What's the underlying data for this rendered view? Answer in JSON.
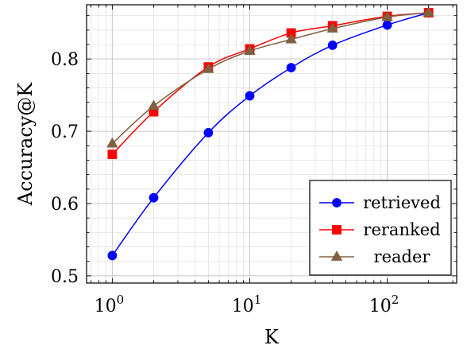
{
  "chart_data": {
    "type": "line",
    "xlabel": "K",
    "ylabel": "Accuracy@K",
    "xscale": "log",
    "xlim": [
      0.65,
      320
    ],
    "ylim": [
      0.49,
      0.875
    ],
    "xticks": [
      {
        "value": 1,
        "base": "10",
        "exp": "0"
      },
      {
        "value": 10,
        "base": "10",
        "exp": "1"
      },
      {
        "value": 100,
        "base": "10",
        "exp": "2"
      }
    ],
    "yticks": [
      {
        "value": 0.5,
        "label": "0.5"
      },
      {
        "value": 0.6,
        "label": "0.6"
      },
      {
        "value": 0.7,
        "label": "0.7"
      },
      {
        "value": 0.8,
        "label": "0.8"
      }
    ],
    "grid": true,
    "legend_position": "bottom-right",
    "x": [
      1,
      2,
      5,
      10,
      20,
      40,
      100,
      200
    ],
    "series": [
      {
        "name": "retrieved",
        "color": "#0000ff",
        "marker": "circle",
        "values": [
          0.528,
          0.608,
          0.698,
          0.749,
          0.788,
          0.819,
          0.847,
          0.864
        ]
      },
      {
        "name": "reranked",
        "color": "#ff0000",
        "marker": "square",
        "values": [
          0.668,
          0.727,
          0.789,
          0.814,
          0.836,
          0.846,
          0.859,
          0.864
        ]
      },
      {
        "name": "reader",
        "color": "#806040",
        "marker": "triangle",
        "values": [
          0.683,
          0.735,
          0.786,
          0.811,
          0.827,
          0.842,
          0.858,
          0.864
        ]
      }
    ]
  }
}
